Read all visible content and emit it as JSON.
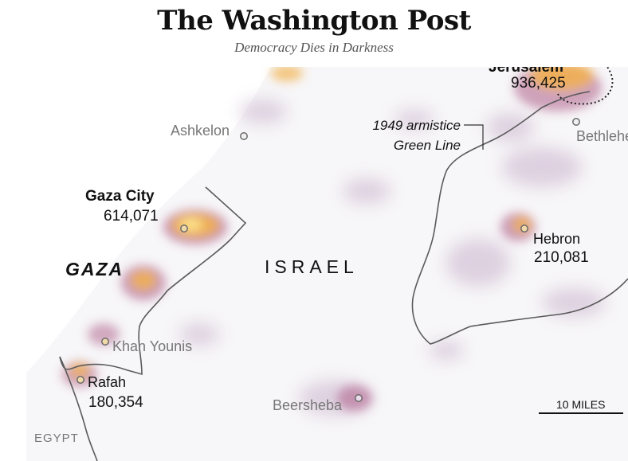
{
  "header": {
    "masthead": "The Washington Post",
    "tagline": "Democracy Dies in Darkness"
  },
  "map": {
    "colors": {
      "sea": "#ffffff",
      "land": "#f7f6f8",
      "density_low": "#c9b2cc",
      "density_mid": "#b8759a",
      "density_high": "#f2b04a",
      "density_peak": "#fde38c",
      "border": "#5a5a5a",
      "marker_fill": "#f2d9a8"
    },
    "labels": {
      "jerusalem_name": "Jerusalem",
      "jerusalem_pop": "936,425",
      "bethlehem": "Bethlehem",
      "ashkelon": "Ashkelon",
      "armistice_line1": "1949 armistice",
      "armistice_line2": "Green Line",
      "gaza_city_name": "Gaza City",
      "gaza_city_pop": "614,071",
      "gaza": "GAZA",
      "israel": "ISRAEL",
      "hebron_name": "Hebron",
      "hebron_pop": "210,081",
      "khan_younis": "Khan Younis",
      "rafah_name": "Rafah",
      "rafah_pop": "180,354",
      "beersheba": "Beersheba",
      "egypt": "EGYPT",
      "scale": "10 MILES"
    }
  }
}
